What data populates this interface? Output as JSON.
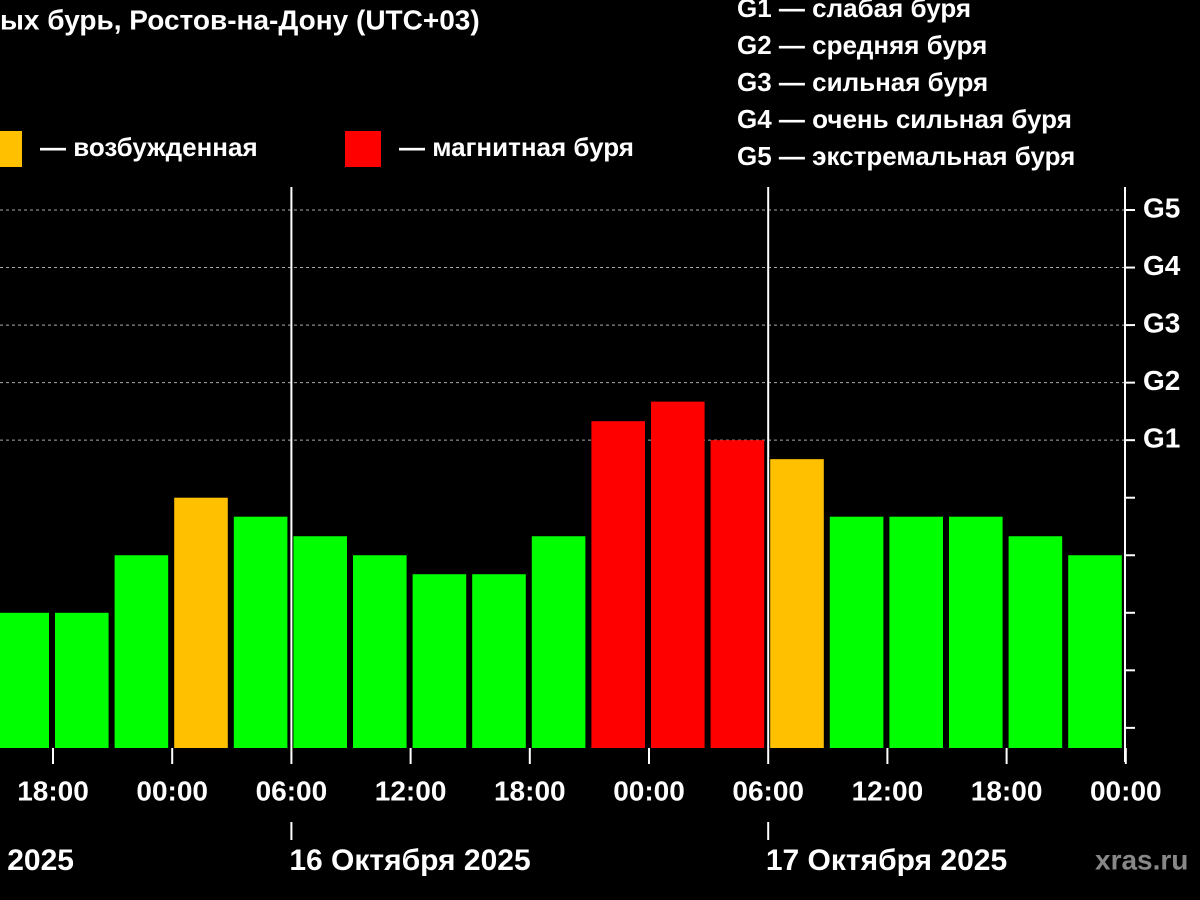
{
  "chart_data": {
    "type": "bar",
    "title": "ых бурь, Ростов-на-Дону (UTC+03)",
    "legend": [
      {
        "color": "#ffc000",
        "label": "— возбужденная"
      },
      {
        "color": "#ff0000",
        "label": "— магнитная буря"
      }
    ],
    "storm_scale": [
      "G1 — слабая буря",
      "G2 — средняя буря",
      "G3 — сильная буря",
      "G4 — очень сильная буря",
      "G5 — экстремальная буря"
    ],
    "categories": [
      null,
      null,
      null,
      null,
      null,
      null,
      null,
      null,
      null,
      null,
      null,
      null,
      null,
      null,
      null,
      null,
      null,
      null,
      null
    ],
    "values": [
      2,
      2,
      3,
      4,
      3.67,
      3.33,
      3,
      2.67,
      2.67,
      3.33,
      5.33,
      5.67,
      5,
      4.67,
      3.67,
      3.67,
      3.67,
      3.33,
      3
    ],
    "colors": [
      "#00ff00",
      "#00ff00",
      "#00ff00",
      "#ffc000",
      "#00ff00",
      "#00ff00",
      "#00ff00",
      "#00ff00",
      "#00ff00",
      "#00ff00",
      "#ff0000",
      "#ff0000",
      "#ff0000",
      "#ffc000",
      "#00ff00",
      "#00ff00",
      "#00ff00",
      "#00ff00",
      "#00ff00"
    ],
    "x_tick_labels": [
      "18:00",
      "00:00",
      "06:00",
      "12:00",
      "18:00",
      "00:00",
      "06:00",
      "12:00",
      "18:00",
      "00:00"
    ],
    "date_labels": [
      "2025",
      "16 Октября 2025",
      "17 Октября 2025"
    ],
    "ylim": [
      -0.35,
      9.4
    ],
    "yticks": [
      {
        "value": 5,
        "label": "G1"
      },
      {
        "value": 6,
        "label": "G2"
      },
      {
        "value": 7,
        "label": "G3"
      },
      {
        "value": 8,
        "label": "G4"
      },
      {
        "value": 9,
        "label": "G5"
      }
    ],
    "minor_yticks": [
      0,
      1,
      2,
      3,
      4
    ],
    "grid": true,
    "watermark": "xras.ru"
  }
}
